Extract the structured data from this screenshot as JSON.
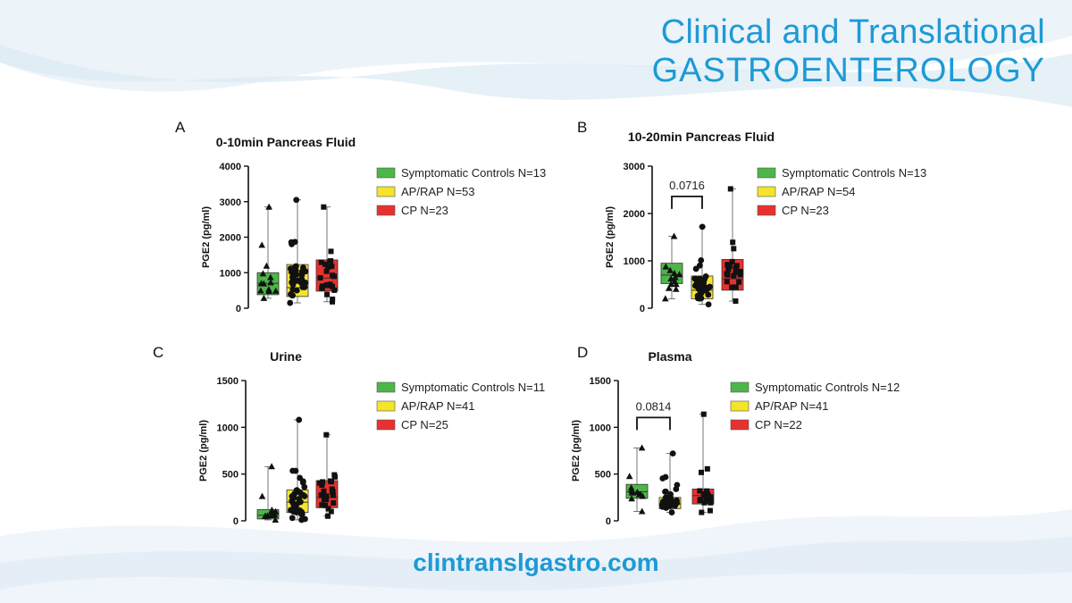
{
  "brand": {
    "line1": "Clinical and Translational",
    "line2": "GASTROENTEROLOGY",
    "url": "clintranslgastro.com",
    "color": "#1d9ad6"
  },
  "group_colors": [
    "#4cb648",
    "#f5e52a",
    "#e8312e"
  ],
  "marker_shapes": [
    "triangle",
    "circle",
    "square"
  ],
  "chart_data": [
    {
      "type": "box",
      "panel": "A",
      "title": "0-10min Pancreas Fluid",
      "ylabel": "PGE2 (pg/ml)",
      "ylim": [
        0,
        4000
      ],
      "yticks": [
        0,
        1000,
        2000,
        3000,
        4000
      ],
      "legend": [
        "Symptomatic Controls N=13",
        "AP/RAP N=53",
        "CP N=23"
      ],
      "series": [
        {
          "name": "Symptomatic Controls",
          "min": 280,
          "q1": 380,
          "median": 700,
          "q3": 1000,
          "max": 2850
        },
        {
          "name": "AP/RAP",
          "min": 150,
          "q1": 330,
          "median": 580,
          "q3": 1230,
          "max": 3050
        },
        {
          "name": "CP",
          "min": 180,
          "q1": 480,
          "median": 850,
          "q3": 1360,
          "max": 2850
        }
      ]
    },
    {
      "type": "box",
      "panel": "B",
      "title": "10-20min Pancreas Fluid",
      "ylabel": "PGE2 (pg/ml)",
      "ylim": [
        0,
        3000
      ],
      "yticks": [
        0,
        1000,
        2000,
        3000
      ],
      "legend": [
        "Symptomatic Controls N=13",
        "AP/RAP N=54",
        "CP N=23"
      ],
      "annotation": {
        "text": "0.0716",
        "between": [
          0,
          1
        ]
      },
      "series": [
        {
          "name": "Symptomatic Controls",
          "min": 200,
          "q1": 520,
          "median": 700,
          "q3": 950,
          "max": 1520
        },
        {
          "name": "AP/RAP",
          "min": 80,
          "q1": 200,
          "median": 380,
          "q3": 680,
          "max": 1720
        },
        {
          "name": "CP",
          "min": 150,
          "q1": 380,
          "median": 620,
          "q3": 1030,
          "max": 2520
        }
      ]
    },
    {
      "type": "box",
      "panel": "C",
      "title": "Urine",
      "ylabel": "PGE2 (pg/ml)",
      "ylim": [
        0,
        1500
      ],
      "yticks": [
        0,
        500,
        1000,
        1500
      ],
      "legend": [
        "Symptomatic Controls N=11",
        "AP/RAP N=41",
        "CP N=25"
      ],
      "series": [
        {
          "name": "Symptomatic Controls",
          "min": 10,
          "q1": 20,
          "median": 60,
          "q3": 120,
          "max": 580
        },
        {
          "name": "AP/RAP",
          "min": 10,
          "q1": 90,
          "median": 200,
          "q3": 330,
          "max": 1080
        },
        {
          "name": "CP",
          "min": 50,
          "q1": 140,
          "median": 250,
          "q3": 430,
          "max": 920
        }
      ]
    },
    {
      "type": "box",
      "panel": "D",
      "title": "Plasma",
      "ylabel": "PGE2 (pg/ml)",
      "ylim": [
        0,
        1500
      ],
      "yticks": [
        0,
        500,
        1000,
        1500
      ],
      "legend": [
        "Symptomatic Controls N=12",
        "AP/RAP N=41",
        "CP N=22"
      ],
      "annotation": {
        "text": "0.0814",
        "between": [
          0,
          1
        ]
      },
      "series": [
        {
          "name": "Symptomatic Controls",
          "min": 100,
          "q1": 240,
          "median": 310,
          "q3": 390,
          "max": 780
        },
        {
          "name": "AP/RAP",
          "min": 90,
          "q1": 130,
          "median": 180,
          "q3": 250,
          "max": 720
        },
        {
          "name": "CP",
          "min": 90,
          "q1": 180,
          "median": 270,
          "q3": 340,
          "max": 1140
        }
      ]
    }
  ]
}
